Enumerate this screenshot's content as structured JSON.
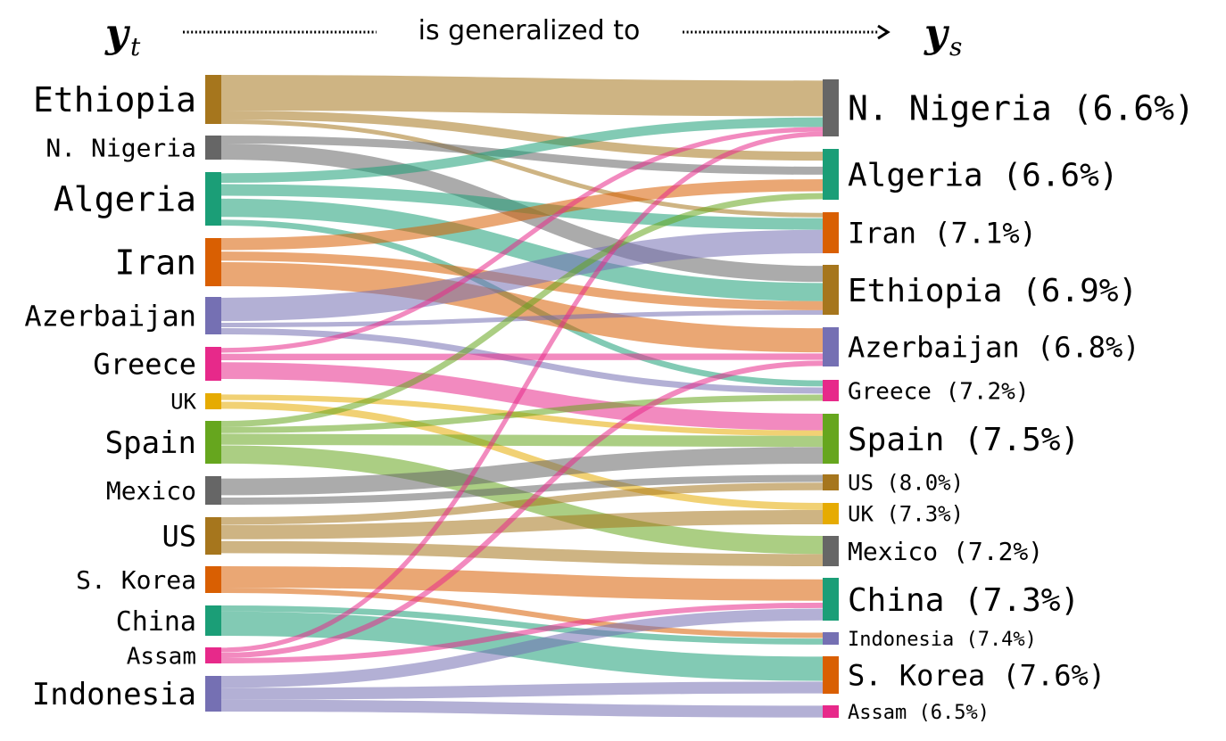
{
  "header": {
    "left_var": "y",
    "left_sub": "t",
    "caption": "is generalized to",
    "right_var": "y",
    "right_sub": "s"
  },
  "colors": {
    "brown": "#a6761d",
    "gray": "#666666",
    "teal": "#1b9e77",
    "orange": "#d95f02",
    "purple": "#7570b3",
    "pink": "#e7298a",
    "yellow": "#e6ab02",
    "green": "#66a61e"
  },
  "source_nodes": [
    {
      "id": "s-ethiopia",
      "label": "Ethiopia",
      "color": "brown"
    },
    {
      "id": "s-n-nigeria",
      "label": "N. Nigeria",
      "color": "gray"
    },
    {
      "id": "s-algeria",
      "label": "Algeria",
      "color": "teal"
    },
    {
      "id": "s-iran",
      "label": "Iran",
      "color": "orange"
    },
    {
      "id": "s-azerbaijan",
      "label": "Azerbaijan",
      "color": "purple"
    },
    {
      "id": "s-greece",
      "label": "Greece",
      "color": "pink"
    },
    {
      "id": "s-uk",
      "label": "UK",
      "color": "yellow"
    },
    {
      "id": "s-spain",
      "label": "Spain",
      "color": "green"
    },
    {
      "id": "s-mexico",
      "label": "Mexico",
      "color": "gray"
    },
    {
      "id": "s-us",
      "label": "US",
      "color": "brown"
    },
    {
      "id": "s-s-korea",
      "label": "S. Korea",
      "color": "orange"
    },
    {
      "id": "s-china",
      "label": "China",
      "color": "teal"
    },
    {
      "id": "s-assam",
      "label": "Assam",
      "color": "pink"
    },
    {
      "id": "s-indonesia",
      "label": "Indonesia",
      "color": "purple"
    }
  ],
  "target_nodes": [
    {
      "id": "t-n-nigeria",
      "label": "N. Nigeria (6.6%)",
      "color": "gray"
    },
    {
      "id": "t-algeria",
      "label": "Algeria (6.6%)",
      "color": "teal"
    },
    {
      "id": "t-iran",
      "label": "Iran (7.1%)",
      "color": "orange"
    },
    {
      "id": "t-ethiopia",
      "label": "Ethiopia (6.9%)",
      "color": "brown"
    },
    {
      "id": "t-azerbaijan",
      "label": "Azerbaijan (6.8%)",
      "color": "purple"
    },
    {
      "id": "t-greece",
      "label": "Greece (7.2%)",
      "color": "pink"
    },
    {
      "id": "t-spain",
      "label": "Spain (7.5%)",
      "color": "green"
    },
    {
      "id": "t-us",
      "label": "US (8.0%)",
      "color": "brown"
    },
    {
      "id": "t-uk",
      "label": "UK (7.3%)",
      "color": "yellow"
    },
    {
      "id": "t-mexico",
      "label": "Mexico (7.2%)",
      "color": "gray"
    },
    {
      "id": "t-china",
      "label": "China (7.3%)",
      "color": "teal"
    },
    {
      "id": "t-indonesia",
      "label": "Indonesia (7.4%)",
      "color": "purple"
    },
    {
      "id": "t-s-korea",
      "label": "S. Korea (7.6%)",
      "color": "orange"
    },
    {
      "id": "t-assam",
      "label": "Assam (6.5%)",
      "color": "pink"
    }
  ],
  "flows": [
    {
      "from": "s-ethiopia",
      "to": "t-n-nigeria",
      "value": 4
    },
    {
      "from": "s-ethiopia",
      "to": "t-algeria",
      "value": 1
    },
    {
      "from": "s-ethiopia",
      "to": "t-iran",
      "value": 0.5
    },
    {
      "from": "s-n-nigeria",
      "to": "t-algeria",
      "value": 1
    },
    {
      "from": "s-n-nigeria",
      "to": "t-ethiopia",
      "value": 2
    },
    {
      "from": "s-algeria",
      "to": "t-n-nigeria",
      "value": 1
    },
    {
      "from": "s-algeria",
      "to": "t-iran",
      "value": 1
    },
    {
      "from": "s-algeria",
      "to": "t-ethiopia",
      "value": 2
    },
    {
      "from": "s-algeria",
      "to": "t-greece",
      "value": 0.5
    },
    {
      "from": "s-iran",
      "to": "t-algeria",
      "value": 1
    },
    {
      "from": "s-iran",
      "to": "t-ethiopia",
      "value": 1
    },
    {
      "from": "s-iran",
      "to": "t-azerbaijan",
      "value": 2
    },
    {
      "from": "s-azerbaijan",
      "to": "t-iran",
      "value": 2
    },
    {
      "from": "s-azerbaijan",
      "to": "t-ethiopia",
      "value": 0.5
    },
    {
      "from": "s-azerbaijan",
      "to": "t-greece",
      "value": 0.5
    },
    {
      "from": "s-greece",
      "to": "t-azerbaijan",
      "value": 0.5
    },
    {
      "from": "s-greece",
      "to": "t-spain",
      "value": 1.5
    },
    {
      "from": "s-greece",
      "to": "t-n-nigeria",
      "value": 0.5
    },
    {
      "from": "s-uk",
      "to": "t-spain",
      "value": 0.5
    },
    {
      "from": "s-uk",
      "to": "t-uk",
      "value": 0.5
    },
    {
      "from": "s-spain",
      "to": "t-algeria",
      "value": 0.5
    },
    {
      "from": "s-spain",
      "to": "t-greece",
      "value": 0.5
    },
    {
      "from": "s-spain",
      "to": "t-spain",
      "value": 1
    },
    {
      "from": "s-spain",
      "to": "t-mexico",
      "value": 1.5
    },
    {
      "from": "s-mexico",
      "to": "t-spain",
      "value": 1.5
    },
    {
      "from": "s-mexico",
      "to": "t-us",
      "value": 0.5
    },
    {
      "from": "s-us",
      "to": "t-us",
      "value": 0.5
    },
    {
      "from": "s-us",
      "to": "t-uk",
      "value": 1
    },
    {
      "from": "s-us",
      "to": "t-mexico",
      "value": 1
    },
    {
      "from": "s-s-korea",
      "to": "t-china",
      "value": 2
    },
    {
      "from": "s-s-korea",
      "to": "t-indonesia",
      "value": 0.5
    },
    {
      "from": "s-china",
      "to": "t-indonesia",
      "value": 0.5
    },
    {
      "from": "s-china",
      "to": "t-s-korea",
      "value": 2
    },
    {
      "from": "s-assam",
      "to": "t-n-nigeria",
      "value": 0.5
    },
    {
      "from": "s-assam",
      "to": "t-azerbaijan",
      "value": 0.5
    },
    {
      "from": "s-assam",
      "to": "t-china",
      "value": 0.5
    },
    {
      "from": "s-indonesia",
      "to": "t-china",
      "value": 1
    },
    {
      "from": "s-indonesia",
      "to": "t-s-korea",
      "value": 1
    },
    {
      "from": "s-indonesia",
      "to": "t-assam",
      "value": 1
    }
  ]
}
